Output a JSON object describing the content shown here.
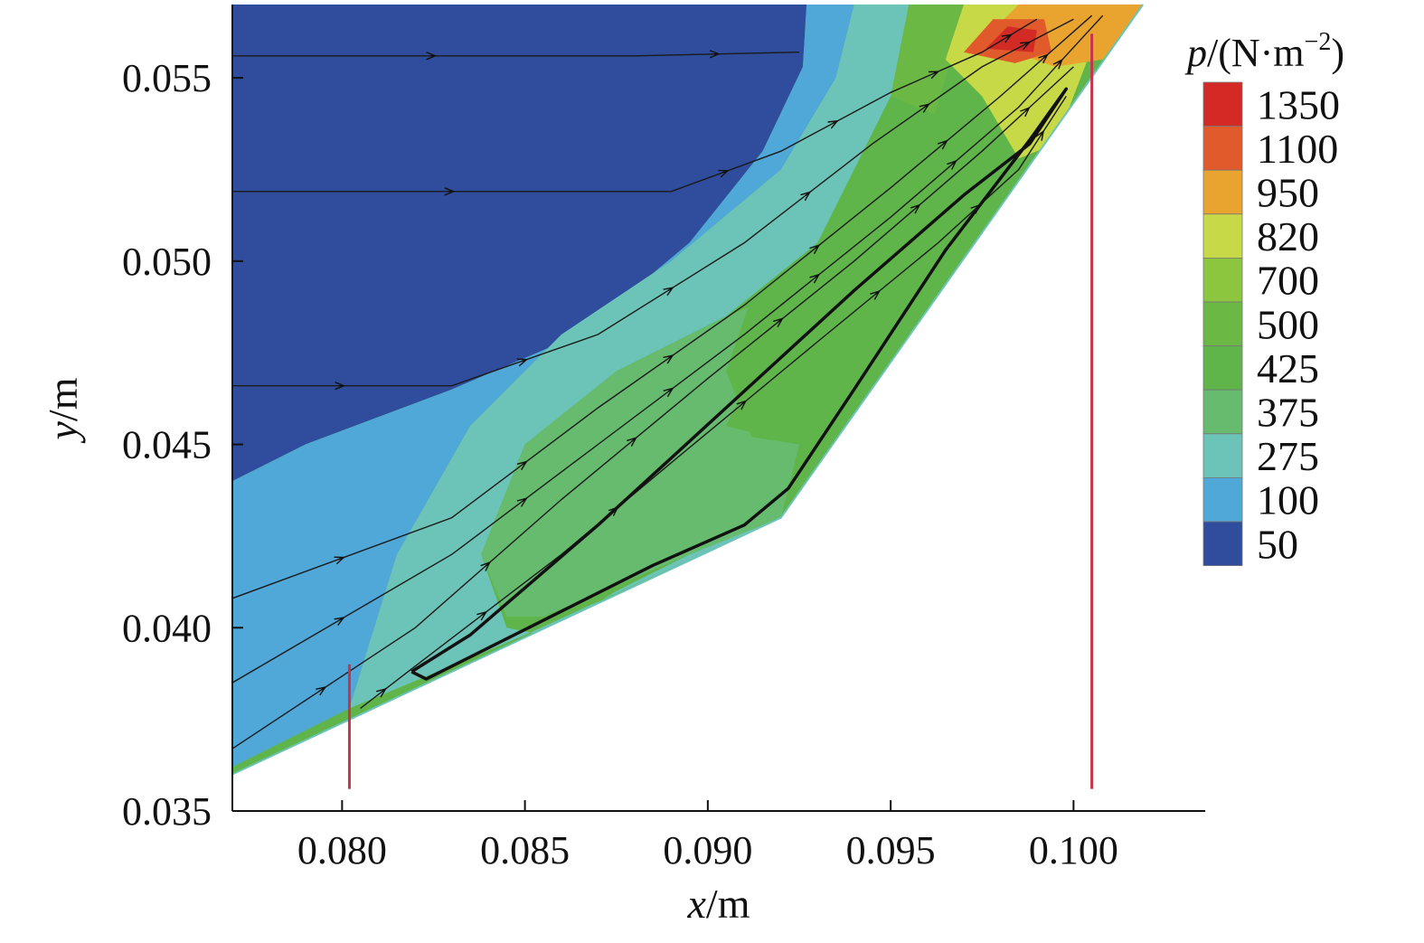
{
  "chart_data": {
    "type": "heatmap",
    "subtype": "pressure-contour-with-streamlines",
    "x_axis": {
      "title": {
        "var": "x",
        "unit": "/m"
      },
      "range": [
        0.077,
        0.1036
      ],
      "ticks": [
        {
          "value": 0.08,
          "label": "0.080"
        },
        {
          "value": 0.085,
          "label": "0.085"
        },
        {
          "value": 0.09,
          "label": "0.090"
        },
        {
          "value": 0.095,
          "label": "0.095"
        },
        {
          "value": 0.1,
          "label": "0.100"
        }
      ]
    },
    "y_axis": {
      "title": {
        "var": "y",
        "unit": "/m"
      },
      "range": [
        0.035,
        0.057
      ],
      "ticks": [
        {
          "value": 0.035,
          "label": "0.035"
        },
        {
          "value": 0.04,
          "label": "0.040"
        },
        {
          "value": 0.045,
          "label": "0.045"
        },
        {
          "value": 0.05,
          "label": "0.050"
        },
        {
          "value": 0.055,
          "label": "0.055"
        }
      ]
    },
    "legend": {
      "title": {
        "var": "p",
        "unit": "/(N·m",
        "sup": "−2",
        "close": ")"
      },
      "placement": "right",
      "levels": [
        {
          "label": "1350",
          "value": 1350,
          "color": "#d42a25"
        },
        {
          "label": "1100",
          "value": 1100,
          "color": "#e05a2b"
        },
        {
          "label": "950",
          "value": 950,
          "color": "#e8a42f"
        },
        {
          "label": "820",
          "value": 820,
          "color": "#c8d947"
        },
        {
          "label": "700",
          "value": 700,
          "color": "#8cc63f"
        },
        {
          "label": "500",
          "value": 500,
          "color": "#6cb845"
        },
        {
          "label": "425",
          "value": 425,
          "color": "#5fb54a"
        },
        {
          "label": "375",
          "value": 375,
          "color": "#66bb6e"
        },
        {
          "label": "275",
          "value": 275,
          "color": "#6cc4b8"
        },
        {
          "label": "100",
          "value": 100,
          "color": "#4fa8d8"
        },
        {
          "label": "50",
          "value": 50,
          "color": "#2f4d9c"
        }
      ]
    },
    "domain_boundary": [
      [
        0.077,
        0.036
      ],
      [
        0.092,
        0.043
      ],
      [
        0.1019,
        0.057
      ],
      [
        0.077,
        0.057
      ]
    ],
    "contour_regions": [
      {
        "value": 50,
        "polygon": [
          [
            0.077,
            0.057
          ],
          [
            0.0927,
            0.057
          ],
          [
            0.0926,
            0.0553
          ],
          [
            0.0915,
            0.053
          ],
          [
            0.0895,
            0.0505
          ],
          [
            0.0865,
            0.048
          ],
          [
            0.083,
            0.0465
          ],
          [
            0.079,
            0.045
          ],
          [
            0.077,
            0.044
          ]
        ]
      },
      {
        "value": 100,
        "polygon": [
          [
            0.077,
            0.044
          ],
          [
            0.079,
            0.045
          ],
          [
            0.083,
            0.0465
          ],
          [
            0.0865,
            0.048
          ],
          [
            0.0895,
            0.0505
          ],
          [
            0.0915,
            0.053
          ],
          [
            0.0926,
            0.0553
          ],
          [
            0.0927,
            0.057
          ],
          [
            0.094,
            0.057
          ],
          [
            0.0935,
            0.055
          ],
          [
            0.092,
            0.0525
          ],
          [
            0.089,
            0.05
          ],
          [
            0.086,
            0.048
          ],
          [
            0.0835,
            0.0455
          ],
          [
            0.0815,
            0.042
          ],
          [
            0.0802,
            0.0378
          ],
          [
            0.077,
            0.0362
          ]
        ]
      },
      {
        "value": 275,
        "polygon": [
          [
            0.0802,
            0.0378
          ],
          [
            0.0815,
            0.042
          ],
          [
            0.0835,
            0.0455
          ],
          [
            0.086,
            0.048
          ],
          [
            0.089,
            0.05
          ],
          [
            0.092,
            0.0525
          ],
          [
            0.0935,
            0.055
          ],
          [
            0.094,
            0.057
          ],
          [
            0.0955,
            0.057
          ],
          [
            0.095,
            0.0545
          ],
          [
            0.093,
            0.0505
          ],
          [
            0.0905,
            0.0485
          ],
          [
            0.0875,
            0.047
          ],
          [
            0.085,
            0.045
          ],
          [
            0.0838,
            0.042
          ],
          [
            0.0845,
            0.04
          ],
          [
            0.0855,
            0.0398
          ],
          [
            0.0875,
            0.041
          ],
          [
            0.0895,
            0.042
          ],
          [
            0.092,
            0.043
          ],
          [
            0.085,
            0.0398
          ]
        ]
      },
      {
        "value": 375,
        "polygon": [
          [
            0.0838,
            0.042
          ],
          [
            0.085,
            0.045
          ],
          [
            0.0875,
            0.047
          ],
          [
            0.0905,
            0.0485
          ],
          [
            0.0918,
            0.049
          ],
          [
            0.0912,
            0.047
          ],
          [
            0.0905,
            0.0455
          ],
          [
            0.0925,
            0.045
          ],
          [
            0.092,
            0.043
          ],
          [
            0.0895,
            0.042
          ],
          [
            0.0855,
            0.0403
          ],
          [
            0.0845,
            0.0403
          ]
        ]
      },
      {
        "value": 425,
        "polygon": [
          [
            0.0905,
            0.047
          ],
          [
            0.0912,
            0.049
          ],
          [
            0.093,
            0.0505
          ],
          [
            0.095,
            0.0525
          ],
          [
            0.0962,
            0.054
          ],
          [
            0.097,
            0.0552
          ],
          [
            0.099,
            0.0548
          ],
          [
            0.098,
            0.053
          ],
          [
            0.0955,
            0.0495
          ],
          [
            0.0925,
            0.045
          ],
          [
            0.0912,
            0.0452
          ]
        ]
      },
      {
        "value": 500,
        "polygon": [
          [
            0.095,
            0.0545
          ],
          [
            0.0955,
            0.057
          ],
          [
            0.0975,
            0.057
          ],
          [
            0.0968,
            0.056
          ],
          [
            0.0965,
            0.055
          ],
          [
            0.0962,
            0.054
          ]
        ]
      },
      {
        "value": 820,
        "polygon": [
          [
            0.0965,
            0.0555
          ],
          [
            0.097,
            0.057
          ],
          [
            0.1,
            0.057
          ],
          [
            0.1005,
            0.0558
          ],
          [
            0.0995,
            0.0532
          ],
          [
            0.0985,
            0.0528
          ],
          [
            0.0975,
            0.0545
          ]
        ]
      },
      {
        "value": 950,
        "polygon": [
          [
            0.0975,
            0.056
          ],
          [
            0.0985,
            0.057
          ],
          [
            0.1019,
            0.057
          ],
          [
            0.1008,
            0.0555
          ],
          [
            0.0995,
            0.0553
          ]
        ]
      },
      {
        "value": 1100,
        "polygon": [
          [
            0.097,
            0.0557
          ],
          [
            0.0978,
            0.0566
          ],
          [
            0.0992,
            0.0566
          ],
          [
            0.0994,
            0.0557
          ],
          [
            0.0984,
            0.0554
          ]
        ]
      },
      {
        "value": 1350,
        "polygon": [
          [
            0.0976,
            0.0558
          ],
          [
            0.0982,
            0.0564
          ],
          [
            0.099,
            0.0563
          ],
          [
            0.0989,
            0.0557
          ]
        ]
      }
    ],
    "streamlines": [
      {
        "points": [
          [
            0.077,
            0.0556
          ],
          [
            0.088,
            0.0556
          ],
          [
            0.0925,
            0.0557
          ]
        ]
      },
      {
        "points": [
          [
            0.077,
            0.0519
          ],
          [
            0.089,
            0.0519
          ],
          [
            0.092,
            0.053
          ],
          [
            0.095,
            0.0546
          ],
          [
            0.0975,
            0.0557
          ],
          [
            0.099,
            0.0566
          ]
        ]
      },
      {
        "points": [
          [
            0.077,
            0.0466
          ],
          [
            0.083,
            0.0466
          ],
          [
            0.087,
            0.048
          ],
          [
            0.091,
            0.0505
          ],
          [
            0.0945,
            0.0532
          ],
          [
            0.0975,
            0.0553
          ],
          [
            0.1,
            0.0566
          ]
        ]
      },
      {
        "points": [
          [
            0.077,
            0.0408
          ],
          [
            0.083,
            0.043
          ],
          [
            0.087,
            0.046
          ],
          [
            0.091,
            0.0488
          ],
          [
            0.095,
            0.052
          ],
          [
            0.098,
            0.0545
          ],
          [
            0.1005,
            0.0567
          ]
        ]
      },
      {
        "points": [
          [
            0.077,
            0.0385
          ],
          [
            0.083,
            0.042
          ],
          [
            0.087,
            0.045
          ],
          [
            0.091,
            0.048
          ],
          [
            0.095,
            0.0512
          ],
          [
            0.0985,
            0.0542
          ],
          [
            0.1008,
            0.0567
          ]
        ]
      },
      {
        "points": [
          [
            0.077,
            0.0367
          ],
          [
            0.082,
            0.04
          ],
          [
            0.086,
            0.0435
          ],
          [
            0.09,
            0.0468
          ],
          [
            0.094,
            0.05
          ],
          [
            0.0975,
            0.053
          ],
          [
            0.1,
            0.0553
          ]
        ]
      },
      {
        "points": [
          [
            0.0805,
            0.0378
          ],
          [
            0.0818,
            0.0388
          ],
          [
            0.086,
            0.042
          ],
          [
            0.089,
            0.0445
          ],
          [
            0.093,
            0.0478
          ],
          [
            0.0963,
            0.0505
          ],
          [
            0.0985,
            0.0525
          ],
          [
            0.0998,
            0.0545
          ]
        ]
      }
    ],
    "recirculation_loop": [
      [
        0.0819,
        0.0388
      ],
      [
        0.0823,
        0.0386
      ],
      [
        0.0855,
        0.0402
      ],
      [
        0.0885,
        0.0417
      ],
      [
        0.091,
        0.0428
      ],
      [
        0.0922,
        0.0438
      ],
      [
        0.094,
        0.0465
      ],
      [
        0.0965,
        0.0503
      ],
      [
        0.0988,
        0.0533
      ],
      [
        0.0998,
        0.0547
      ],
      [
        0.0988,
        0.0532
      ],
      [
        0.097,
        0.0518
      ],
      [
        0.094,
        0.0492
      ],
      [
        0.0905,
        0.046
      ],
      [
        0.087,
        0.0428
      ],
      [
        0.0835,
        0.0398
      ],
      [
        0.0819,
        0.0388
      ]
    ],
    "reference_lines": [
      {
        "x": 0.0802,
        "y_from": 0.0356,
        "y_to": 0.039,
        "color": "#c8334c"
      },
      {
        "x": 0.1005,
        "y_from": 0.0356,
        "y_to": 0.0562,
        "color": "#c8334c"
      }
    ]
  }
}
